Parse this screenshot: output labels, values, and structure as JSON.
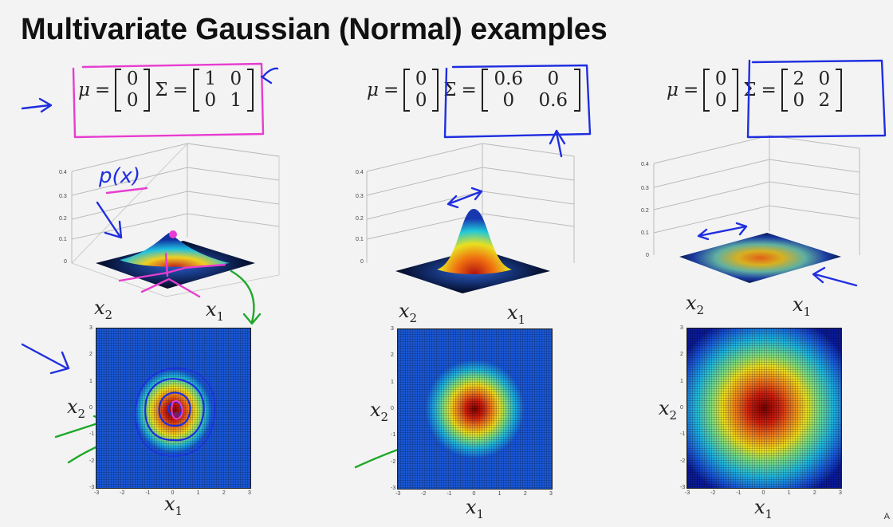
{
  "title": "Multivariate Gaussian (Normal) examples",
  "corner_mark": "A",
  "examples": [
    {
      "mu_symbol": "μ",
      "equals": "=",
      "sigma_symbol": "Σ",
      "mu": [
        "0",
        "0"
      ],
      "sigma": [
        [
          "1",
          "0"
        ],
        [
          "0",
          "1"
        ]
      ],
      "surface_label": "p(x)",
      "x1_label": "x",
      "x2_label": "x",
      "sub1": "1",
      "sub2": "2"
    },
    {
      "mu_symbol": "μ",
      "equals": "=",
      "sigma_symbol": "Σ",
      "mu": [
        "0",
        "0"
      ],
      "sigma": [
        [
          "0.6",
          "0"
        ],
        [
          "0",
          "0.6"
        ]
      ],
      "x1_label": "x",
      "x2_label": "x",
      "sub1": "1",
      "sub2": "2"
    },
    {
      "mu_symbol": "μ",
      "equals": "=",
      "sigma_symbol": "Σ",
      "mu": [
        "0",
        "0"
      ],
      "sigma": [
        [
          "2",
          "0"
        ],
        [
          "0",
          "2"
        ]
      ],
      "x1_label": "x",
      "x2_label": "x",
      "sub1": "1",
      "sub2": "2"
    }
  ],
  "z_ticks": [
    "0",
    "0.1",
    "0.2",
    "0.3",
    "0.4"
  ],
  "heat_ticks": [
    "-3",
    "-2",
    "-1",
    "0",
    "1",
    "2",
    "3"
  ],
  "colors": {
    "annotation_magenta": "#e83cd0",
    "annotation_blue": "#1f2ee0",
    "annotation_green": "#1ea82a",
    "colormap_low": "#0a1a9a",
    "colormap_high": "#7a0000"
  }
}
